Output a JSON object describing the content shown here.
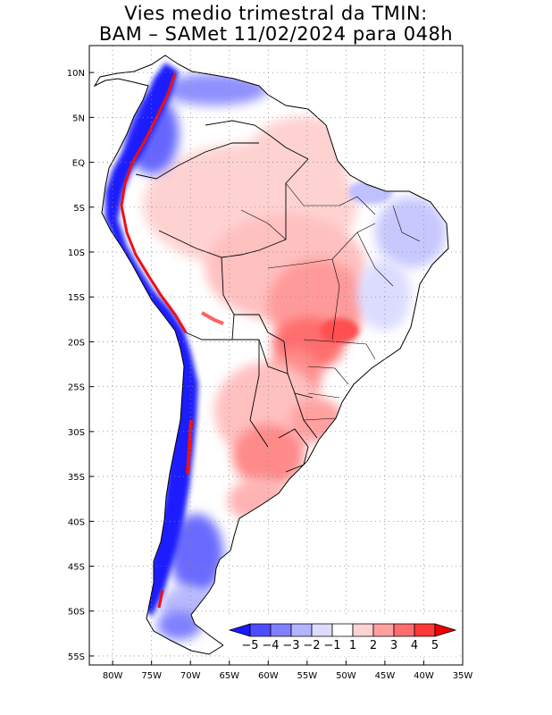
{
  "title": {
    "line1": "Vies medio trimestral da TMIN:",
    "line2": "BAM – SAMet 11/02/2024  para 048h"
  },
  "map": {
    "lon_range": [
      -83,
      -35
    ],
    "lat_range": [
      -56,
      13
    ],
    "grid_lines": "dotted",
    "x_ticks": [
      {
        "value": -80,
        "label": "80W"
      },
      {
        "value": -75,
        "label": "75W"
      },
      {
        "value": -70,
        "label": "70W"
      },
      {
        "value": -65,
        "label": "65W"
      },
      {
        "value": -60,
        "label": "60W"
      },
      {
        "value": -55,
        "label": "55W"
      },
      {
        "value": -50,
        "label": "50W"
      },
      {
        "value": -45,
        "label": "45W"
      },
      {
        "value": -40,
        "label": "40W"
      },
      {
        "value": -35,
        "label": "35W"
      }
    ],
    "y_ticks": [
      {
        "value": 10,
        "label": "10N"
      },
      {
        "value": 5,
        "label": "5N"
      },
      {
        "value": 0,
        "label": "EQ"
      },
      {
        "value": -5,
        "label": "5S"
      },
      {
        "value": -10,
        "label": "10S"
      },
      {
        "value": -15,
        "label": "15S"
      },
      {
        "value": -20,
        "label": "20S"
      },
      {
        "value": -25,
        "label": "25S"
      },
      {
        "value": -30,
        "label": "30S"
      },
      {
        "value": -35,
        "label": "35S"
      },
      {
        "value": -40,
        "label": "40S"
      },
      {
        "value": -45,
        "label": "45S"
      },
      {
        "value": -50,
        "label": "50S"
      },
      {
        "value": -55,
        "label": "55S"
      }
    ]
  },
  "colorbar": {
    "labels": [
      "−5",
      "−4",
      "−3",
      "−2",
      "−1",
      "1",
      "2",
      "3",
      "4",
      "5"
    ],
    "colors": [
      "#1a1aff",
      "#4d4dff",
      "#8080ff",
      "#b3b3ff",
      "#dcdcff",
      "#ffffff",
      "#ffd2d2",
      "#ffa0a0",
      "#ff6e6e",
      "#ff3838",
      "#ee0000"
    ]
  }
}
